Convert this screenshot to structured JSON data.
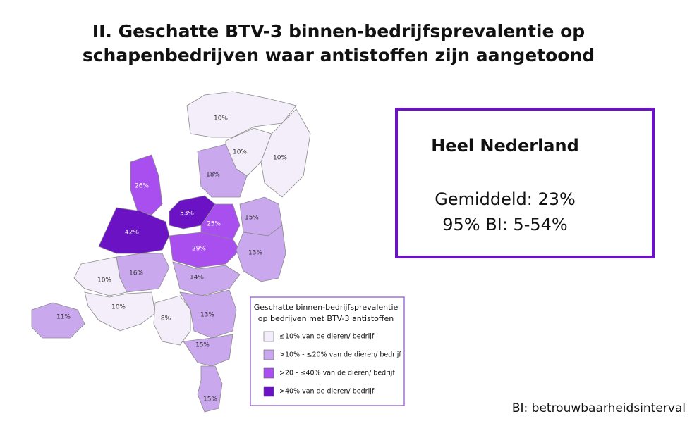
{
  "title": [
    "II. Geschatte BTV-3 binnen-bedrijfsprevalentie op",
    "schapenbedrijven waar antistoffen zijn aangetoond"
  ],
  "summary": {
    "heading": "Heel Nederland",
    "mean": "Gemiddeld: 23%",
    "interval": "95% BI: 5-54%"
  },
  "legend": {
    "title": [
      "Geschatte binnen-bedrijfsprevalentie",
      "op bedrijven met BTV-3 antistoffen"
    ],
    "classes": [
      {
        "label": "≤10% van de dieren/ bedrijf",
        "color": "#f3eefa"
      },
      {
        "label": ">10% - ≤20% van de dieren/ bedrijf",
        "color": "#c9a8ee"
      },
      {
        "label": ">20 - ≤40% van de dieren/ bedrijf",
        "color": "#a94ff0"
      },
      {
        "label": ">40% van de dieren/ bedrijf",
        "color": "#6a12c4"
      }
    ]
  },
  "regions": [
    {
      "label": "10%",
      "class": 0
    },
    {
      "label": "10%",
      "class": 0
    },
    {
      "label": "10%",
      "class": 0
    },
    {
      "label": "18%",
      "class": 1
    },
    {
      "label": "26%",
      "class": 2
    },
    {
      "label": "53%",
      "class": 3
    },
    {
      "label": "25%",
      "class": 2
    },
    {
      "label": "15%",
      "class": 1
    },
    {
      "label": "42%",
      "class": 3
    },
    {
      "label": "29%",
      "class": 2
    },
    {
      "label": "13%",
      "class": 1
    },
    {
      "label": "16%",
      "class": 1
    },
    {
      "label": "10%",
      "class": 0
    },
    {
      "label": "14%",
      "class": 1
    },
    {
      "label": "10%",
      "class": 0
    },
    {
      "label": "8%",
      "class": 0
    },
    {
      "label": "13%",
      "class": 1
    },
    {
      "label": "11%",
      "class": 1
    },
    {
      "label": "15%",
      "class": 1
    },
    {
      "label": "15%",
      "class": 1
    }
  ],
  "footnote": "BI: betrouwbaarheidsinterval"
}
